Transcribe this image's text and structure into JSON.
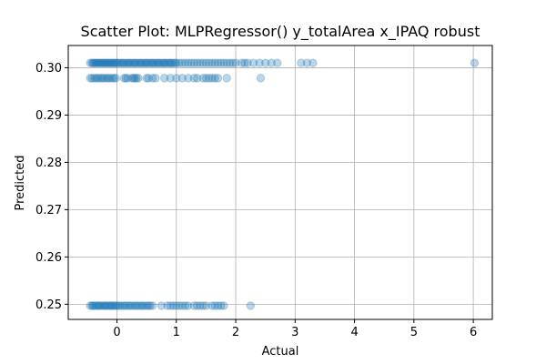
{
  "chart_data": {
    "type": "scatter",
    "title": "Scatter Plot: MLPRegressor() y_totalArea x_IPAQ robust",
    "xlabel": "Actual",
    "ylabel": "Predicted",
    "xlim": [
      -0.82,
      6.32
    ],
    "ylim": [
      0.2468,
      0.3047
    ],
    "xticks": [
      0,
      1,
      2,
      3,
      4,
      5,
      6
    ],
    "yticks": [
      0.25,
      0.26,
      0.27,
      0.28,
      0.29,
      0.3
    ],
    "ytick_labels": [
      "0.25",
      "0.26",
      "0.27",
      "0.28",
      "0.29",
      "0.30"
    ],
    "grid": true,
    "marker_color": "#1f77b4",
    "marker_alpha": 0.3,
    "series": [
      {
        "x": [
          -0.45,
          -0.42,
          -0.4,
          -0.38,
          -0.36,
          -0.34,
          -0.32,
          -0.3,
          -0.28,
          -0.26,
          -0.24,
          -0.22,
          -0.2,
          -0.18,
          -0.16,
          -0.14,
          -0.12,
          -0.1,
          -0.08,
          -0.06,
          -0.04,
          -0.02,
          0.0,
          0.02,
          0.05,
          0.08,
          0.1,
          0.12,
          0.15,
          0.18,
          0.2,
          0.22,
          0.25,
          0.28,
          0.3,
          0.32,
          0.35,
          0.38,
          0.4,
          0.42,
          0.45,
          0.48,
          0.5,
          0.52,
          0.55,
          0.58,
          0.6,
          0.62,
          0.65,
          0.68,
          0.7,
          0.72,
          0.75,
          0.78,
          0.8,
          0.82,
          0.85,
          0.88,
          0.9,
          0.92,
          0.95,
          0.98,
          1.0,
          1.05,
          1.1,
          1.15,
          1.2,
          1.25,
          1.3,
          1.35,
          1.4,
          1.45,
          1.5,
          1.55,
          1.6,
          1.65,
          1.7,
          1.75,
          1.8,
          1.85,
          1.9,
          1.95,
          2.0,
          2.1,
          2.15,
          2.2,
          2.3,
          2.4,
          2.5,
          2.6,
          2.7,
          3.1,
          3.2,
          3.3,
          6.02
        ],
        "y": [
          0.301,
          0.301,
          0.301,
          0.301,
          0.301,
          0.301,
          0.301,
          0.301,
          0.301,
          0.301,
          0.301,
          0.301,
          0.301,
          0.301,
          0.301,
          0.301,
          0.301,
          0.301,
          0.301,
          0.301,
          0.301,
          0.301,
          0.301,
          0.301,
          0.301,
          0.301,
          0.301,
          0.301,
          0.301,
          0.301,
          0.301,
          0.301,
          0.301,
          0.301,
          0.301,
          0.301,
          0.301,
          0.301,
          0.301,
          0.301,
          0.301,
          0.301,
          0.301,
          0.301,
          0.301,
          0.301,
          0.301,
          0.301,
          0.301,
          0.301,
          0.301,
          0.301,
          0.301,
          0.301,
          0.301,
          0.301,
          0.301,
          0.301,
          0.301,
          0.301,
          0.301,
          0.301,
          0.301,
          0.301,
          0.301,
          0.301,
          0.301,
          0.301,
          0.301,
          0.301,
          0.301,
          0.301,
          0.301,
          0.301,
          0.301,
          0.301,
          0.301,
          0.301,
          0.301,
          0.301,
          0.301,
          0.301,
          0.301,
          0.301,
          0.301,
          0.301,
          0.301,
          0.301,
          0.301,
          0.301,
          0.301,
          0.301,
          0.301,
          0.301,
          0.301
        ]
      },
      {
        "x": [
          -0.45,
          -0.42,
          -0.38,
          -0.35,
          -0.32,
          -0.28,
          -0.25,
          -0.22,
          -0.18,
          -0.15,
          -0.12,
          -0.08,
          -0.05,
          -0.02,
          0.12,
          0.15,
          0.18,
          0.25,
          0.28,
          0.3,
          0.33,
          0.36,
          0.5,
          0.53,
          0.6,
          0.65,
          0.8,
          0.9,
          1.0,
          1.1,
          1.2,
          1.3,
          1.35,
          1.45,
          1.5,
          1.55,
          1.6,
          1.65,
          1.7,
          1.85,
          2.42
        ],
        "y": [
          0.2978,
          0.2978,
          0.2978,
          0.2978,
          0.2978,
          0.2978,
          0.2978,
          0.2978,
          0.2978,
          0.2978,
          0.2978,
          0.2978,
          0.2978,
          0.2978,
          0.2978,
          0.2978,
          0.2978,
          0.2978,
          0.2978,
          0.2978,
          0.2978,
          0.2978,
          0.2978,
          0.2978,
          0.2978,
          0.2978,
          0.2978,
          0.2978,
          0.2978,
          0.2978,
          0.2978,
          0.2978,
          0.2978,
          0.2978,
          0.2978,
          0.2978,
          0.2978,
          0.2978,
          0.2978,
          0.2978,
          0.2978
        ]
      },
      {
        "x": [
          -0.45,
          -0.42,
          -0.4,
          -0.38,
          -0.35,
          -0.32,
          -0.3,
          -0.28,
          -0.25,
          -0.22,
          -0.2,
          -0.18,
          -0.15,
          -0.12,
          -0.1,
          -0.08,
          -0.05,
          -0.02,
          0.0,
          0.03,
          0.06,
          0.1,
          0.13,
          0.16,
          0.2,
          0.23,
          0.26,
          0.3,
          0.33,
          0.36,
          0.4,
          0.43,
          0.46,
          0.5,
          0.53,
          0.56,
          0.6,
          0.75,
          0.85,
          0.9,
          0.95,
          1.0,
          1.05,
          1.1,
          1.15,
          1.2,
          1.3,
          1.35,
          1.4,
          1.45,
          1.5,
          1.6,
          1.65,
          1.7,
          1.75,
          1.8,
          2.25
        ],
        "y": [
          0.2497,
          0.2497,
          0.2497,
          0.2497,
          0.2497,
          0.2497,
          0.2497,
          0.2497,
          0.2497,
          0.2497,
          0.2497,
          0.2497,
          0.2497,
          0.2497,
          0.2497,
          0.2497,
          0.2497,
          0.2497,
          0.2497,
          0.2497,
          0.2497,
          0.2497,
          0.2497,
          0.2497,
          0.2497,
          0.2497,
          0.2497,
          0.2497,
          0.2497,
          0.2497,
          0.2497,
          0.2497,
          0.2497,
          0.2497,
          0.2497,
          0.2497,
          0.2497,
          0.2497,
          0.2497,
          0.2497,
          0.2497,
          0.2497,
          0.2497,
          0.2497,
          0.2497,
          0.2497,
          0.2497,
          0.2497,
          0.2497,
          0.2497,
          0.2497,
          0.2497,
          0.2497,
          0.2497,
          0.2497,
          0.2497,
          0.2497
        ]
      }
    ]
  }
}
